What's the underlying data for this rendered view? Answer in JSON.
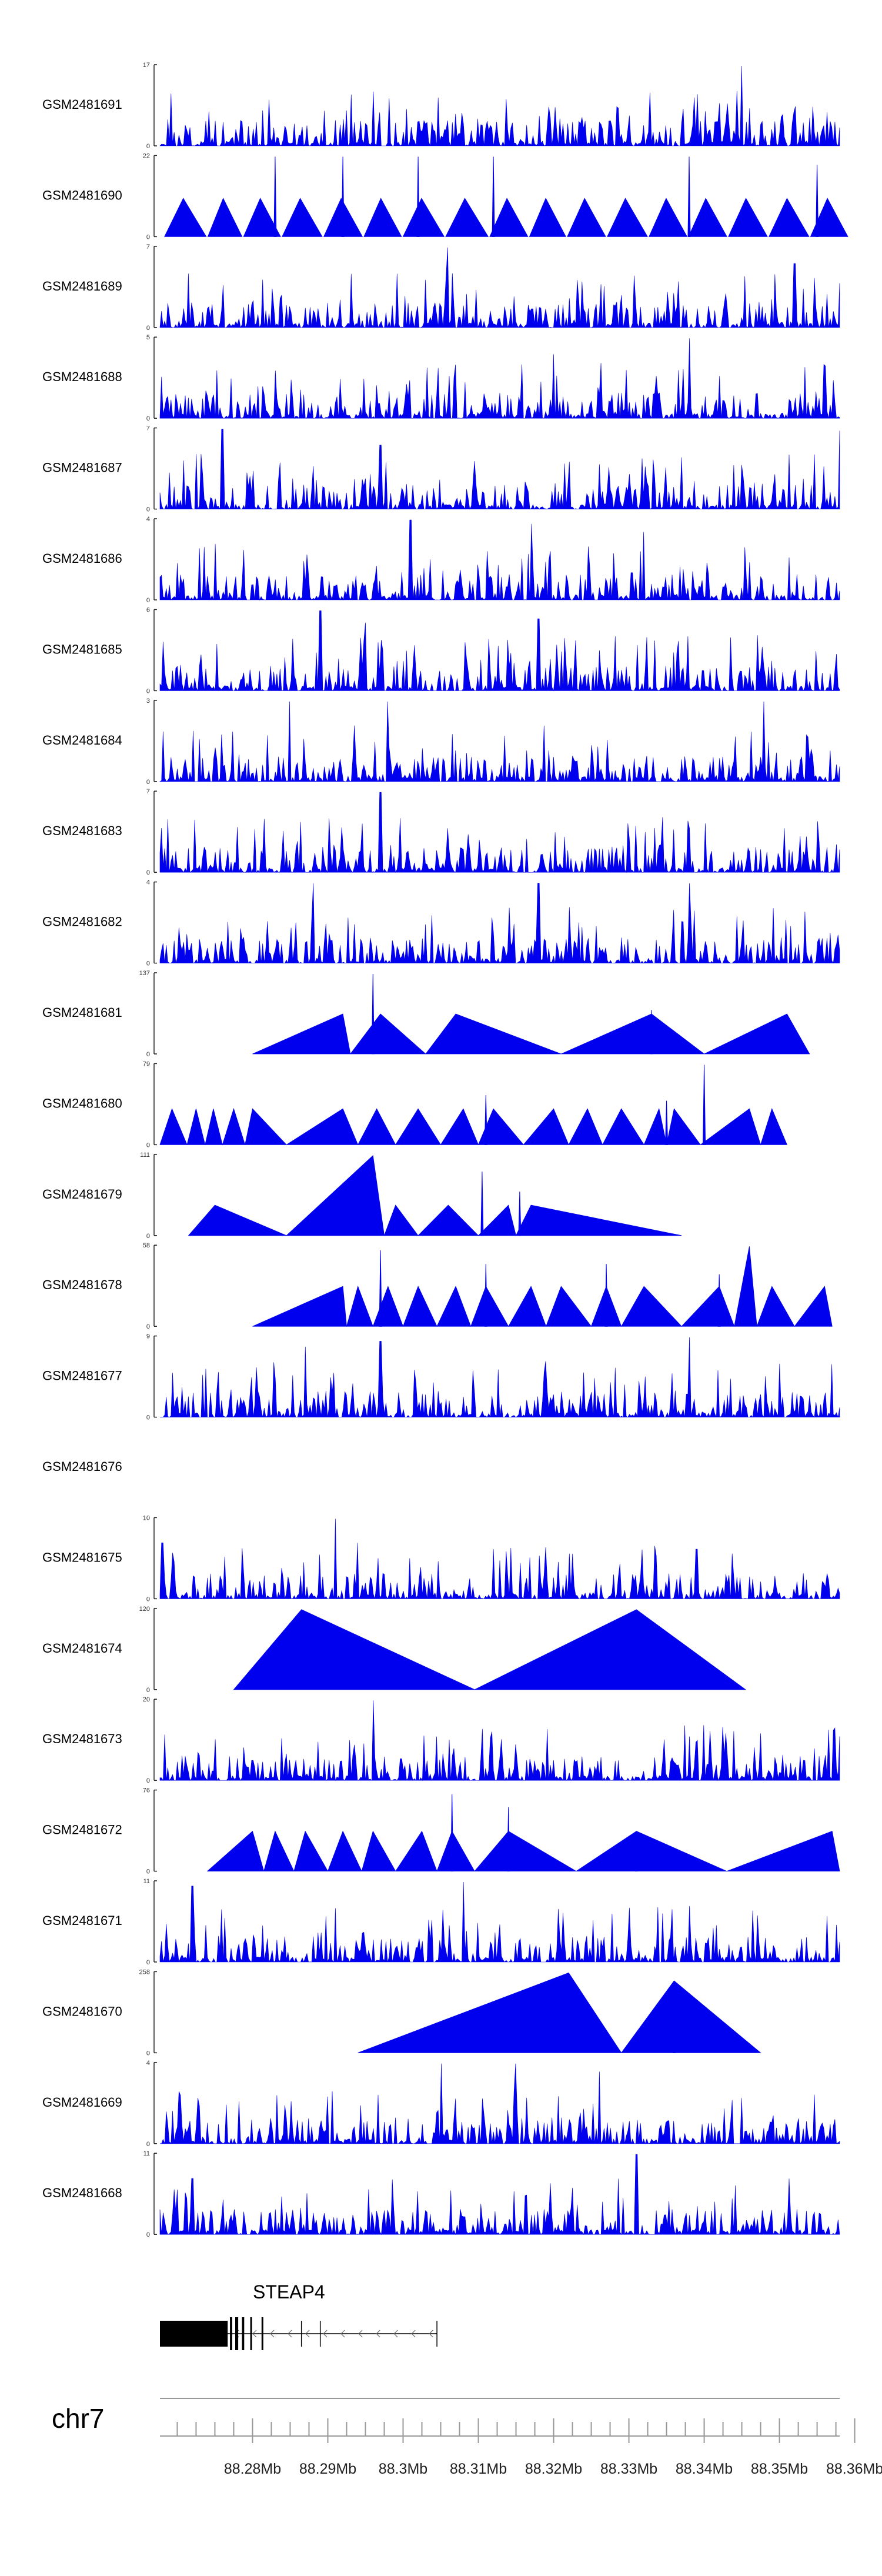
{
  "chart_data": {
    "type": "area",
    "title": "",
    "color_signal": "#0000ee",
    "color_axis": "#222222",
    "color_scale": "#999999",
    "tracks": [
      {
        "name": "GSM2481691",
        "ymax": 17,
        "shape": "dense",
        "peaks": [
          [
            88.345,
            1.0
          ],
          [
            88.2615,
            0.3
          ],
          [
            88.352,
            0.42
          ],
          [
            88.354,
            0.35
          ],
          [
            88.302,
            0.3
          ],
          [
            88.295,
            0.28
          ]
        ]
      },
      {
        "name": "GSM2481690",
        "ymax": 22,
        "shape": "tri",
        "spikes": [
          [
            88.292,
            1.0
          ],
          [
            88.283,
            1.0
          ],
          [
            88.312,
            1.0
          ],
          [
            88.302,
            1.0
          ],
          [
            88.338,
            1.0
          ],
          [
            88.355,
            0.9
          ]
        ]
      },
      {
        "name": "GSM2481689",
        "ymax": 7,
        "shape": "dense",
        "peaks": [
          [
            88.306,
            1.0
          ],
          [
            88.265,
            0.85
          ],
          [
            88.352,
            0.8
          ]
        ]
      },
      {
        "name": "GSM2481688",
        "ymax": 5,
        "shape": "dense",
        "peaks": [
          [
            88.338,
            1.0
          ],
          [
            88.32,
            0.8
          ]
        ]
      },
      {
        "name": "GSM2481687",
        "ymax": 7,
        "shape": "dense",
        "peaks": [
          [
            88.276,
            1.0
          ],
          [
            88.358,
            0.98
          ],
          [
            88.297,
            0.8
          ]
        ]
      },
      {
        "name": "GSM2481686",
        "ymax": 4,
        "shape": "dense",
        "peaks": [
          [
            88.301,
            1.0
          ],
          [
            88.317,
            0.95
          ],
          [
            88.332,
            0.85
          ]
        ]
      },
      {
        "name": "GSM2481685",
        "ymax": 6,
        "shape": "dense",
        "peaks": [
          [
            88.289,
            1.0
          ],
          [
            88.318,
            0.9
          ],
          [
            88.295,
            0.85
          ]
        ]
      },
      {
        "name": "GSM2481684",
        "ymax": 3,
        "shape": "dense",
        "peaks": [
          [
            88.285,
            1.0
          ],
          [
            88.298,
            1.0
          ],
          [
            88.348,
            1.0
          ]
        ]
      },
      {
        "name": "GSM2481683",
        "ymax": 7,
        "shape": "dense",
        "peaks": [
          [
            88.297,
            1.0
          ],
          [
            88.338,
            0.55
          ]
        ]
      },
      {
        "name": "GSM2481682",
        "ymax": 4,
        "shape": "dense",
        "peaks": [
          [
            88.288,
            1.0
          ],
          [
            88.318,
            1.0
          ],
          [
            88.338,
            1.0
          ]
        ]
      },
      {
        "name": "GSM2481681",
        "ymax": 137,
        "shape": "tri",
        "tris": [
          [
            88.28,
            88.292,
            88.293,
            0.5
          ],
          [
            88.293,
            88.297,
            88.303,
            0.5
          ],
          [
            88.303,
            88.307,
            88.321,
            0.5
          ],
          [
            88.321,
            88.333,
            88.34,
            0.5
          ],
          [
            88.34,
            88.351,
            88.354,
            0.5
          ]
        ],
        "spikes": [
          [
            88.296,
            1.0
          ],
          [
            88.333,
            0.55
          ]
        ]
      },
      {
        "name": "GSM2481680",
        "ymax": 79,
        "shape": "tri",
        "tris": [
          [
            88.2677,
            88.2693,
            88.2713,
            0.45
          ],
          [
            88.2713,
            88.2725,
            88.2737,
            0.45
          ],
          [
            88.2737,
            88.2748,
            88.276,
            0.45
          ],
          [
            88.276,
            88.2775,
            88.279,
            0.45
          ],
          [
            88.279,
            88.28,
            88.2845,
            0.45
          ],
          [
            88.2845,
            88.292,
            88.294,
            0.45
          ],
          [
            88.294,
            88.2965,
            88.299,
            0.45
          ],
          [
            88.299,
            88.302,
            88.305,
            0.45
          ],
          [
            88.305,
            88.308,
            88.31,
            0.45
          ],
          [
            88.31,
            88.312,
            88.316,
            0.45
          ],
          [
            88.316,
            88.32,
            88.322,
            0.45
          ],
          [
            88.322,
            88.3245,
            88.3265,
            0.45
          ],
          [
            88.3265,
            88.329,
            88.332,
            0.45
          ],
          [
            88.332,
            88.334,
            88.335,
            0.45
          ],
          [
            88.335,
            88.336,
            88.3395,
            0.45
          ],
          [
            88.3395,
            88.346,
            88.3475,
            0.45
          ],
          [
            88.3475,
            88.349,
            88.351,
            0.45
          ]
        ],
        "spikes": [
          [
            88.311,
            0.62
          ],
          [
            88.34,
            1.0
          ],
          [
            88.335,
            0.55
          ]
        ]
      },
      {
        "name": "GSM2481679",
        "ymax": 111,
        "shape": "tri",
        "tris": [
          [
            88.2715,
            88.275,
            88.2845,
            0.38
          ],
          [
            88.2845,
            88.296,
            88.2975,
            1.0
          ],
          [
            88.2975,
            88.299,
            88.302,
            0.38
          ],
          [
            88.302,
            88.306,
            88.31,
            0.38
          ],
          [
            88.31,
            88.314,
            88.315,
            0.38
          ],
          [
            88.315,
            88.317,
            88.337,
            0.38
          ]
        ],
        "spikes": [
          [
            88.3105,
            0.8
          ],
          [
            88.3155,
            0.55
          ]
        ]
      },
      {
        "name": "GSM2481678",
        "ymax": 58,
        "shape": "tri",
        "tris": [
          [
            88.28,
            88.292,
            88.2925,
            0.5
          ],
          [
            88.2925,
            88.294,
            88.296,
            0.5
          ],
          [
            88.296,
            88.298,
            88.3,
            0.5
          ],
          [
            88.3,
            88.302,
            88.3045,
            0.5
          ],
          [
            88.3045,
            88.307,
            88.309,
            0.5
          ],
          [
            88.309,
            88.311,
            88.314,
            0.5
          ],
          [
            88.314,
            88.317,
            88.319,
            0.5
          ],
          [
            88.319,
            88.321,
            88.325,
            0.5
          ],
          [
            88.325,
            88.327,
            88.329,
            0.5
          ],
          [
            88.329,
            88.332,
            88.337,
            0.5
          ],
          [
            88.337,
            88.342,
            88.344,
            0.5
          ],
          [
            88.344,
            88.346,
            88.347,
            1.0
          ],
          [
            88.347,
            88.349,
            88.352,
            0.5
          ],
          [
            88.352,
            88.356,
            88.357,
            0.5
          ]
        ],
        "spikes": [
          [
            88.297,
            0.95
          ],
          [
            88.311,
            0.78
          ],
          [
            88.327,
            0.78
          ],
          [
            88.342,
            0.65
          ]
        ]
      },
      {
        "name": "GSM2481677",
        "ymax": 9,
        "shape": "dense",
        "peaks": [
          [
            88.338,
            1.0
          ],
          [
            88.297,
            0.95
          ],
          [
            88.287,
            0.88
          ],
          [
            88.319,
            0.7
          ]
        ]
      },
      {
        "name": "GSM2481676",
        "ymax": null,
        "shape": "empty"
      },
      {
        "name": "GSM2481675",
        "ymax": 10,
        "shape": "dense",
        "peaks": [
          [
            88.291,
            1.0
          ],
          [
            88.268,
            0.7
          ],
          [
            88.266,
            0.82
          ],
          [
            88.294,
            0.7
          ],
          [
            88.312,
            0.62
          ],
          [
            88.339,
            0.62
          ]
        ]
      },
      {
        "name": "GSM2481674",
        "ymax": 120,
        "shape": "tri",
        "tris": [
          [
            88.2775,
            88.2865,
            88.3095,
            1.0
          ],
          [
            88.3095,
            88.331,
            88.3455,
            1.0
          ]
        ]
      },
      {
        "name": "GSM2481673",
        "ymax": 20,
        "shape": "dense",
        "peaks": [
          [
            88.296,
            1.0
          ],
          [
            88.358,
            0.55
          ],
          [
            88.28,
            0.25
          ]
        ]
      },
      {
        "name": "GSM2481672",
        "ymax": 76,
        "shape": "tri",
        "tris": [
          [
            88.274,
            88.28,
            88.2815,
            0.5
          ],
          [
            88.2815,
            88.283,
            88.2855,
            0.5
          ],
          [
            88.2855,
            88.287,
            88.29,
            0.5
          ],
          [
            88.29,
            88.292,
            88.2945,
            0.5
          ],
          [
            88.2945,
            88.296,
            88.299,
            0.5
          ],
          [
            88.299,
            88.3025,
            88.3045,
            0.5
          ],
          [
            88.3045,
            88.3065,
            88.3095,
            0.5
          ],
          [
            88.3095,
            88.314,
            88.323,
            0.5
          ],
          [
            88.323,
            88.331,
            88.343,
            0.5
          ],
          [
            88.343,
            88.357,
            88.358,
            0.5
          ]
        ],
        "spikes": [
          [
            88.3065,
            0.96
          ],
          [
            88.314,
            0.8
          ],
          [
            88.331,
            0.45
          ]
        ]
      },
      {
        "name": "GSM2481671",
        "ymax": 11,
        "shape": "dense",
        "peaks": [
          [
            88.308,
            1.0
          ],
          [
            88.272,
            0.95
          ],
          [
            88.338,
            0.7
          ]
        ]
      },
      {
        "name": "GSM2481670",
        "ymax": 258,
        "shape": "tri",
        "tris": [
          [
            88.294,
            88.322,
            88.329,
            1.0
          ],
          [
            88.329,
            88.336,
            88.3475,
            0.9
          ]
        ],
        "spikes": [
          [
            88.336,
            0.55
          ]
        ]
      },
      {
        "name": "GSM2481669",
        "ymax": 4,
        "shape": "dense",
        "peaks": [
          [
            88.305,
            1.0
          ],
          [
            88.315,
            1.0
          ],
          [
            88.326,
            0.9
          ]
        ]
      },
      {
        "name": "GSM2481668",
        "ymax": 11,
        "shape": "dense",
        "peaks": [
          [
            88.331,
            1.0
          ],
          [
            88.272,
            0.7
          ]
        ]
      }
    ],
    "gene": {
      "name": "STEAP4",
      "strand": "-",
      "start": 88.2677,
      "end": 88.3045,
      "exons": [
        [
          88.2677,
          88.2767
        ],
        [
          88.277,
          88.2773
        ],
        [
          88.2777,
          88.2781
        ],
        [
          88.2786,
          88.2789
        ],
        [
          88.2797,
          88.2799
        ],
        [
          88.2812,
          88.2814
        ]
      ],
      "intron_ticks": [
        88.2865,
        88.289,
        88.3045
      ]
    },
    "axis": {
      "chromosome": "chr7",
      "min": 88.2677,
      "max": 88.358,
      "ticks": [
        88.28,
        88.29,
        88.3,
        88.31,
        88.32,
        88.33,
        88.34,
        88.35,
        88.36
      ],
      "tick_labels": [
        "88.28Mb",
        "88.29Mb",
        "88.3Mb",
        "88.31Mb",
        "88.32Mb",
        "88.33Mb",
        "88.34Mb",
        "88.35Mb",
        "88.36Mb"
      ],
      "minor_step": 0.0025
    }
  }
}
